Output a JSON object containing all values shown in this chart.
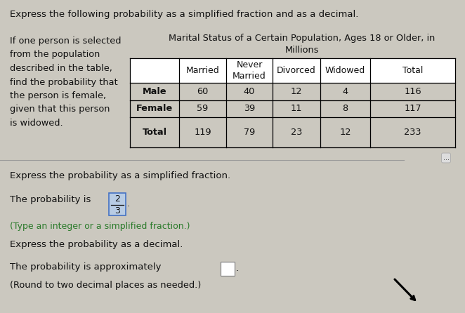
{
  "title_top": "Express the following probability as a simplified fraction and as a decimal.",
  "left_text_lines": [
    "If one person is selected",
    "from the population",
    "described in the table,",
    "find the probability that",
    "the person is female,",
    "given that this person",
    "is widowed."
  ],
  "table_title_line1": "Marital Status of a Certain Population, Ages 18 or Older, in",
  "table_title_line2": "Millions",
  "table_headers": [
    "",
    "Married",
    "Never\nMarried",
    "Divorced",
    "Widowed",
    "Total"
  ],
  "table_rows": [
    [
      "Male",
      "60",
      "40",
      "12",
      "4",
      "116"
    ],
    [
      "Female",
      "59",
      "39",
      "11",
      "8",
      "117"
    ],
    [
      "Total",
      "119",
      "79",
      "23",
      "12",
      "233"
    ]
  ],
  "bottom_texts": [
    "Express the probability as a simplified fraction.",
    "Express the probability as a decimal.",
    "The probability is approximately",
    "(Round to two decimal places as needed.)"
  ],
  "fraction_text": "The probability is",
  "fraction_num": "2",
  "fraction_den": "3",
  "hint_fraction": "(Type an integer or a simplified fraction.)",
  "bg_color": "#cbc8bf",
  "text_color": "#111111",
  "hint_color": "#2a7a2a",
  "fraction_box_color": "#b8cce4",
  "fraction_box_edge": "#4472c4",
  "small_box_color": "#ffffff",
  "small_box_edge": "#888888",
  "divider_color": "#999999"
}
